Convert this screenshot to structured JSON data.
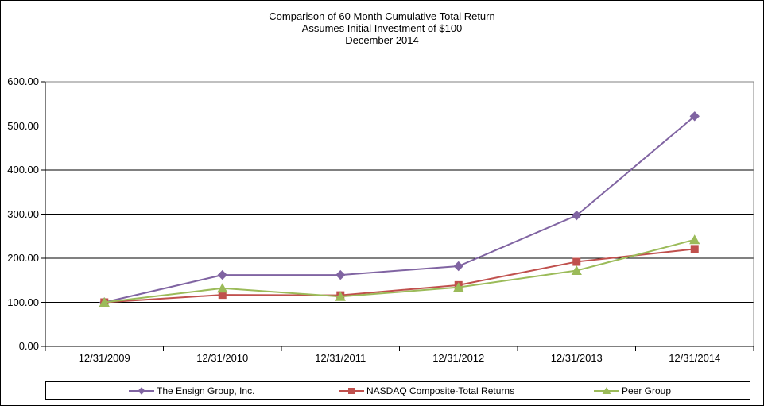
{
  "chart_data": {
    "type": "line",
    "title_lines": [
      "Comparison of 60 Month Cumulative Total Return",
      "Assumes Initial Investment of $100",
      "December 2014"
    ],
    "categories": [
      "12/31/2009",
      "12/31/2010",
      "12/31/2011",
      "12/31/2012",
      "12/31/2013",
      "12/31/2014"
    ],
    "series": [
      {
        "name": "The Ensign Group, Inc.",
        "marker": "diamond",
        "color": "#8064A2",
        "values": [
          100.0,
          162.0,
          162.0,
          182.0,
          297.0,
          522.0
        ]
      },
      {
        "name": "NASDAQ Composite-Total Returns",
        "marker": "square",
        "color": "#C0504D",
        "values": [
          100.0,
          117.0,
          116.0,
          139.0,
          192.0,
          221.0
        ]
      },
      {
        "name": "Peer Group",
        "marker": "triangle",
        "color": "#9BBB59",
        "values": [
          100.0,
          132.0,
          113.0,
          134.0,
          172.0,
          242.0
        ]
      }
    ],
    "ylim": [
      0,
      600
    ],
    "y_tick_step": 100,
    "y_tick_labels": [
      "0.00",
      "100.00",
      "200.00",
      "300.00",
      "400.00",
      "500.00",
      "600.00"
    ],
    "grid": "horizontal-only",
    "legend_position": "bottom"
  },
  "colors": {
    "background": "#FFFFFF",
    "outer_border": "#000000",
    "axis_line": "#000000",
    "gridline": "#000000",
    "plot_border": "#808080",
    "ensign_purple": "#8064A2",
    "nasdaq_red": "#C0504D",
    "peer_green": "#9BBB59"
  }
}
